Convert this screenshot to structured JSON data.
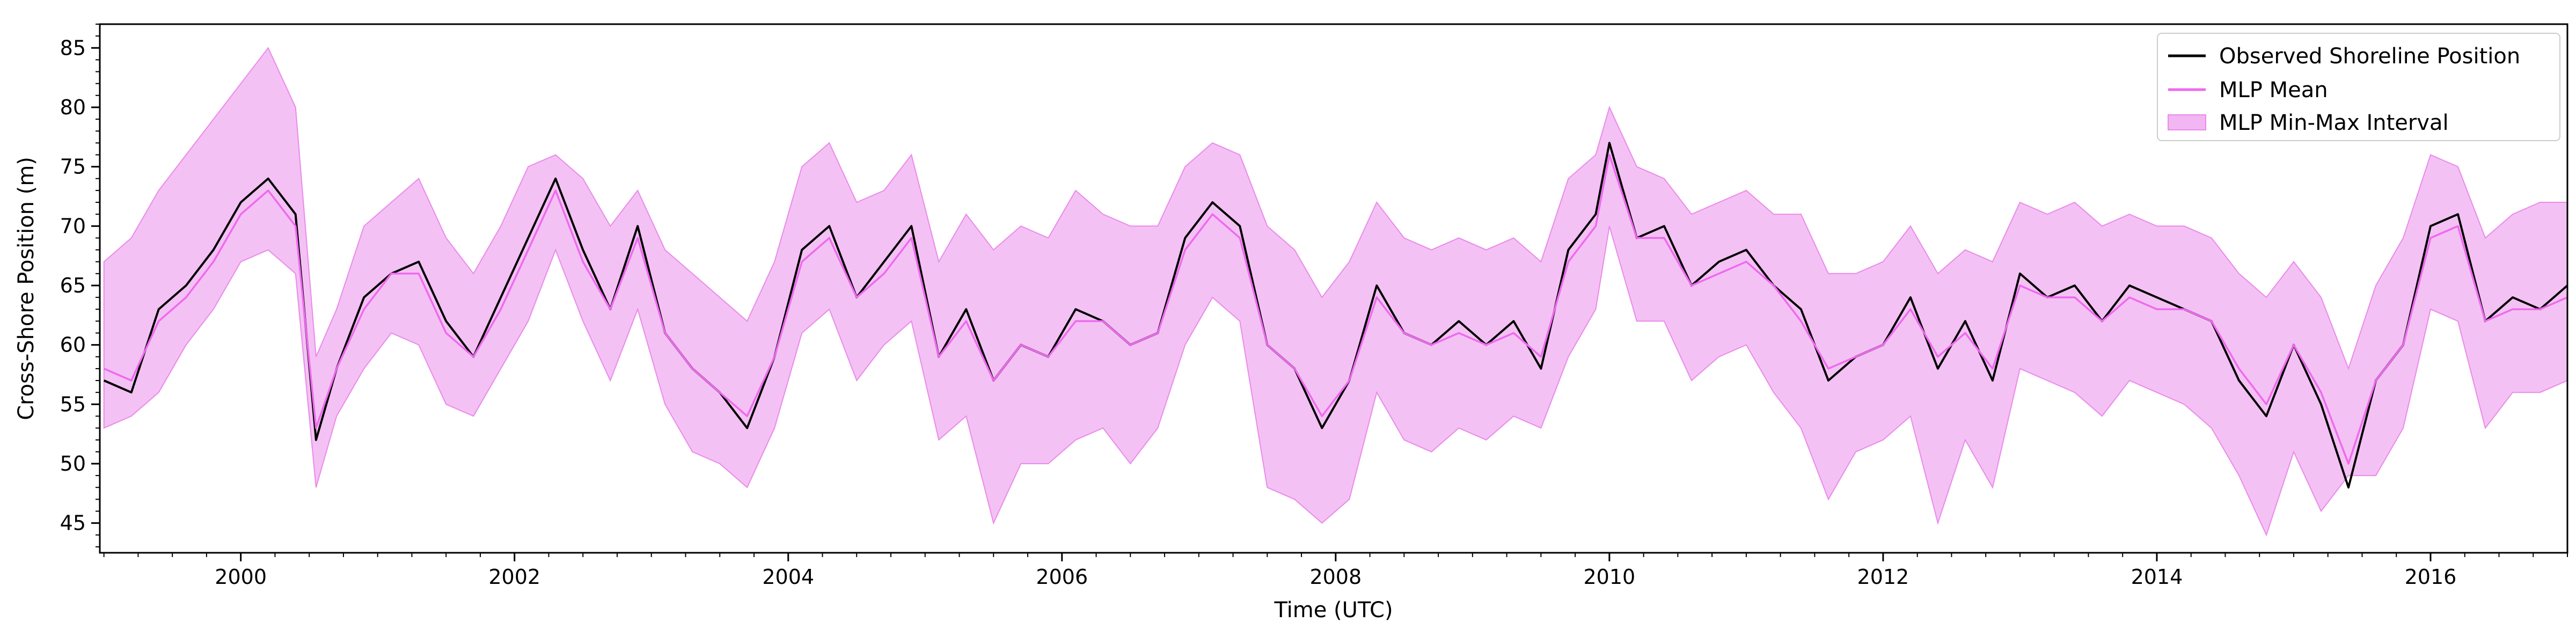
{
  "chart_data": {
    "type": "line",
    "title": "",
    "xlabel": "Time (UTC)",
    "ylabel": "Cross-Shore Position (m)",
    "xlim": [
      1998.97,
      2017.0
    ],
    "ylim": [
      42.5,
      87.0
    ],
    "x_ticks": [
      2000,
      2002,
      2004,
      2006,
      2008,
      2010,
      2012,
      2014,
      2016
    ],
    "x_tick_labels": [
      "2000",
      "2002",
      "2004",
      "2006",
      "2008",
      "2010",
      "2012",
      "2014",
      "2016"
    ],
    "y_ticks": [
      45,
      50,
      55,
      60,
      65,
      70,
      75,
      80,
      85
    ],
    "y_tick_labels": [
      "45",
      "50",
      "55",
      "60",
      "65",
      "70",
      "75",
      "80",
      "85"
    ],
    "grid": false,
    "legend_position": "top-right",
    "legend": [
      "Observed Shoreline Position",
      "MLP Mean",
      "MLP Min-Max Interval"
    ],
    "colors": {
      "observed": "#000000",
      "mean": "#ee6aee",
      "band": "#f2b6f2",
      "band_edge": "#ea8aea"
    },
    "x": [
      1999.0,
      1999.2,
      1999.4,
      1999.6,
      1999.8,
      2000.0,
      2000.2,
      2000.4,
      2000.55,
      2000.7,
      2000.9,
      2001.1,
      2001.3,
      2001.5,
      2001.7,
      2001.9,
      2002.1,
      2002.3,
      2002.5,
      2002.7,
      2002.9,
      2003.1,
      2003.3,
      2003.5,
      2003.7,
      2003.9,
      2004.1,
      2004.3,
      2004.5,
      2004.7,
      2004.9,
      2005.1,
      2005.3,
      2005.5,
      2005.7,
      2005.9,
      2006.1,
      2006.3,
      2006.5,
      2006.7,
      2006.9,
      2007.1,
      2007.3,
      2007.5,
      2007.7,
      2007.9,
      2008.1,
      2008.3,
      2008.5,
      2008.7,
      2008.9,
      2009.1,
      2009.3,
      2009.5,
      2009.7,
      2009.9,
      2010.0,
      2010.2,
      2010.4,
      2010.6,
      2010.8,
      2011.0,
      2011.2,
      2011.4,
      2011.6,
      2011.8,
      2012.0,
      2012.2,
      2012.4,
      2012.6,
      2012.8,
      2013.0,
      2013.2,
      2013.4,
      2013.6,
      2013.8,
      2014.0,
      2014.2,
      2014.4,
      2014.6,
      2014.8,
      2015.0,
      2015.2,
      2015.4,
      2015.6,
      2015.8,
      2016.0,
      2016.2,
      2016.4,
      2016.6,
      2016.8,
      2017.0
    ],
    "series": [
      {
        "name": "Observed Shoreline Position",
        "values": [
          57,
          56,
          63,
          65,
          68,
          72,
          74,
          71,
          52,
          58,
          64,
          66,
          67,
          62,
          59,
          64,
          69,
          74,
          68,
          63,
          70,
          61,
          58,
          56,
          53,
          59,
          68,
          70,
          64,
          67,
          70,
          59,
          63,
          57,
          60,
          59,
          63,
          62,
          60,
          61,
          69,
          72,
          70,
          60,
          58,
          53,
          57,
          65,
          61,
          60,
          62,
          60,
          62,
          58,
          68,
          71,
          77,
          69,
          70,
          65,
          67,
          68,
          65,
          63,
          57,
          59,
          60,
          64,
          58,
          62,
          57,
          66,
          64,
          65,
          62,
          65,
          64,
          63,
          62,
          57,
          54,
          60,
          55,
          48,
          57,
          60,
          70,
          71,
          62,
          64,
          63,
          65
        ]
      },
      {
        "name": "MLP Mean",
        "values": [
          58,
          57,
          62,
          64,
          67,
          71,
          73,
          70,
          53,
          58,
          63,
          66,
          66,
          61,
          59,
          63,
          68,
          73,
          67,
          63,
          69,
          61,
          58,
          56,
          54,
          59,
          67,
          69,
          64,
          66,
          69,
          59,
          62,
          57,
          60,
          59,
          62,
          62,
          60,
          61,
          68,
          71,
          69,
          60,
          58,
          54,
          57,
          64,
          61,
          60,
          61,
          60,
          61,
          59,
          67,
          70,
          76,
          69,
          69,
          65,
          66,
          67,
          65,
          62,
          58,
          59,
          60,
          63,
          59,
          61,
          58,
          65,
          64,
          64,
          62,
          64,
          63,
          63,
          62,
          58,
          55,
          60,
          56,
          50,
          57,
          60,
          69,
          70,
          62,
          63,
          63,
          64
        ]
      }
    ],
    "band": {
      "name": "MLP Min-Max Interval",
      "lower": [
        53,
        54,
        56,
        60,
        63,
        67,
        68,
        66,
        48,
        54,
        58,
        61,
        60,
        55,
        54,
        58,
        62,
        68,
        62,
        57,
        63,
        55,
        51,
        50,
        48,
        53,
        61,
        63,
        57,
        60,
        62,
        52,
        54,
        45,
        50,
        50,
        52,
        53,
        50,
        53,
        60,
        64,
        62,
        48,
        47,
        45,
        47,
        56,
        52,
        51,
        53,
        52,
        54,
        53,
        59,
        63,
        70,
        62,
        62,
        57,
        59,
        60,
        56,
        53,
        47,
        51,
        52,
        54,
        45,
        52,
        48,
        58,
        57,
        56,
        54,
        57,
        56,
        55,
        53,
        49,
        44,
        51,
        46,
        49,
        49,
        53,
        63,
        62,
        53,
        56,
        56,
        57
      ],
      "upper": [
        67,
        69,
        73,
        76,
        79,
        82,
        85,
        80,
        59,
        63,
        70,
        72,
        74,
        69,
        66,
        70,
        75,
        76,
        74,
        70,
        73,
        68,
        66,
        64,
        62,
        67,
        75,
        77,
        72,
        73,
        76,
        67,
        71,
        68,
        70,
        69,
        73,
        71,
        70,
        70,
        75,
        77,
        76,
        70,
        68,
        64,
        67,
        72,
        69,
        68,
        69,
        68,
        69,
        67,
        74,
        76,
        80,
        75,
        74,
        71,
        72,
        73,
        71,
        71,
        66,
        66,
        67,
        70,
        66,
        68,
        67,
        72,
        71,
        72,
        70,
        71,
        70,
        70,
        69,
        66,
        64,
        67,
        64,
        58,
        65,
        69,
        76,
        75,
        69,
        71,
        72,
        72
      ]
    }
  }
}
